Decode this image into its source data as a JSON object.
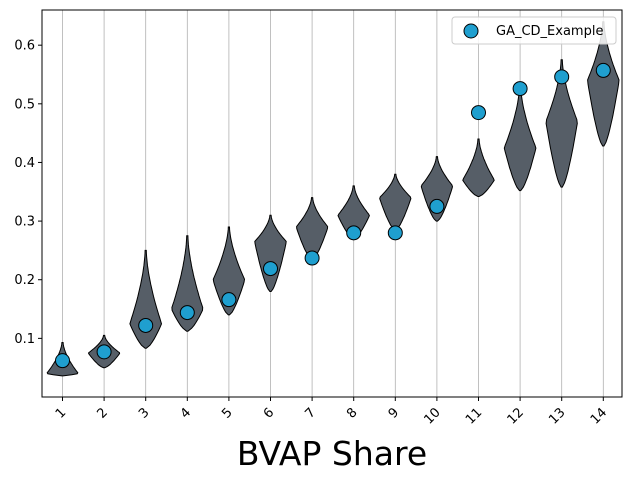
{
  "chart_data": {
    "type": "violin",
    "xlabel": "BVAP Share",
    "ylabel": "",
    "title": "",
    "categories": [
      "1",
      "2",
      "3",
      "4",
      "5",
      "6",
      "7",
      "8",
      "9",
      "10",
      "11",
      "12",
      "13",
      "14"
    ],
    "ylim": [
      0.0,
      0.66
    ],
    "yticks": [
      0.1,
      0.2,
      0.3,
      0.4,
      0.5,
      0.6
    ],
    "ytick_labels": [
      "0.1",
      "0.2",
      "0.3",
      "0.4",
      "0.5",
      "0.6"
    ],
    "grid": "vertical",
    "legend": {
      "position": "top-right",
      "entries": [
        "GA_CD_Example"
      ]
    },
    "colors": {
      "violin_fill": "#565e67",
      "violin_edge": "#000000",
      "marker_fill": "#1f9fcf",
      "marker_edge": "#000000",
      "grid": "#b0b0b0"
    },
    "distributions": [
      {
        "min": 0.036,
        "max": 0.093,
        "mode": 0.04
      },
      {
        "min": 0.05,
        "max": 0.105,
        "mode": 0.075
      },
      {
        "min": 0.083,
        "max": 0.25,
        "mode": 0.125
      },
      {
        "min": 0.112,
        "max": 0.275,
        "mode": 0.15
      },
      {
        "min": 0.14,
        "max": 0.29,
        "mode": 0.2
      },
      {
        "min": 0.18,
        "max": 0.31,
        "mode": 0.265
      },
      {
        "min": 0.235,
        "max": 0.34,
        "mode": 0.29
      },
      {
        "min": 0.27,
        "max": 0.36,
        "mode": 0.31
      },
      {
        "min": 0.285,
        "max": 0.38,
        "mode": 0.34
      },
      {
        "min": 0.3,
        "max": 0.41,
        "mode": 0.36
      },
      {
        "min": 0.342,
        "max": 0.44,
        "mode": 0.37
      },
      {
        "min": 0.352,
        "max": 0.53,
        "mode": 0.425
      },
      {
        "min": 0.358,
        "max": 0.575,
        "mode": 0.47
      },
      {
        "min": 0.428,
        "max": 0.64,
        "mode": 0.54
      }
    ],
    "series": [
      {
        "name": "GA_CD_Example",
        "type": "scatter",
        "values": [
          0.062,
          0.077,
          0.122,
          0.144,
          0.166,
          0.219,
          0.237,
          0.28,
          0.28,
          0.325,
          0.485,
          0.526,
          0.546,
          0.557
        ]
      }
    ]
  }
}
